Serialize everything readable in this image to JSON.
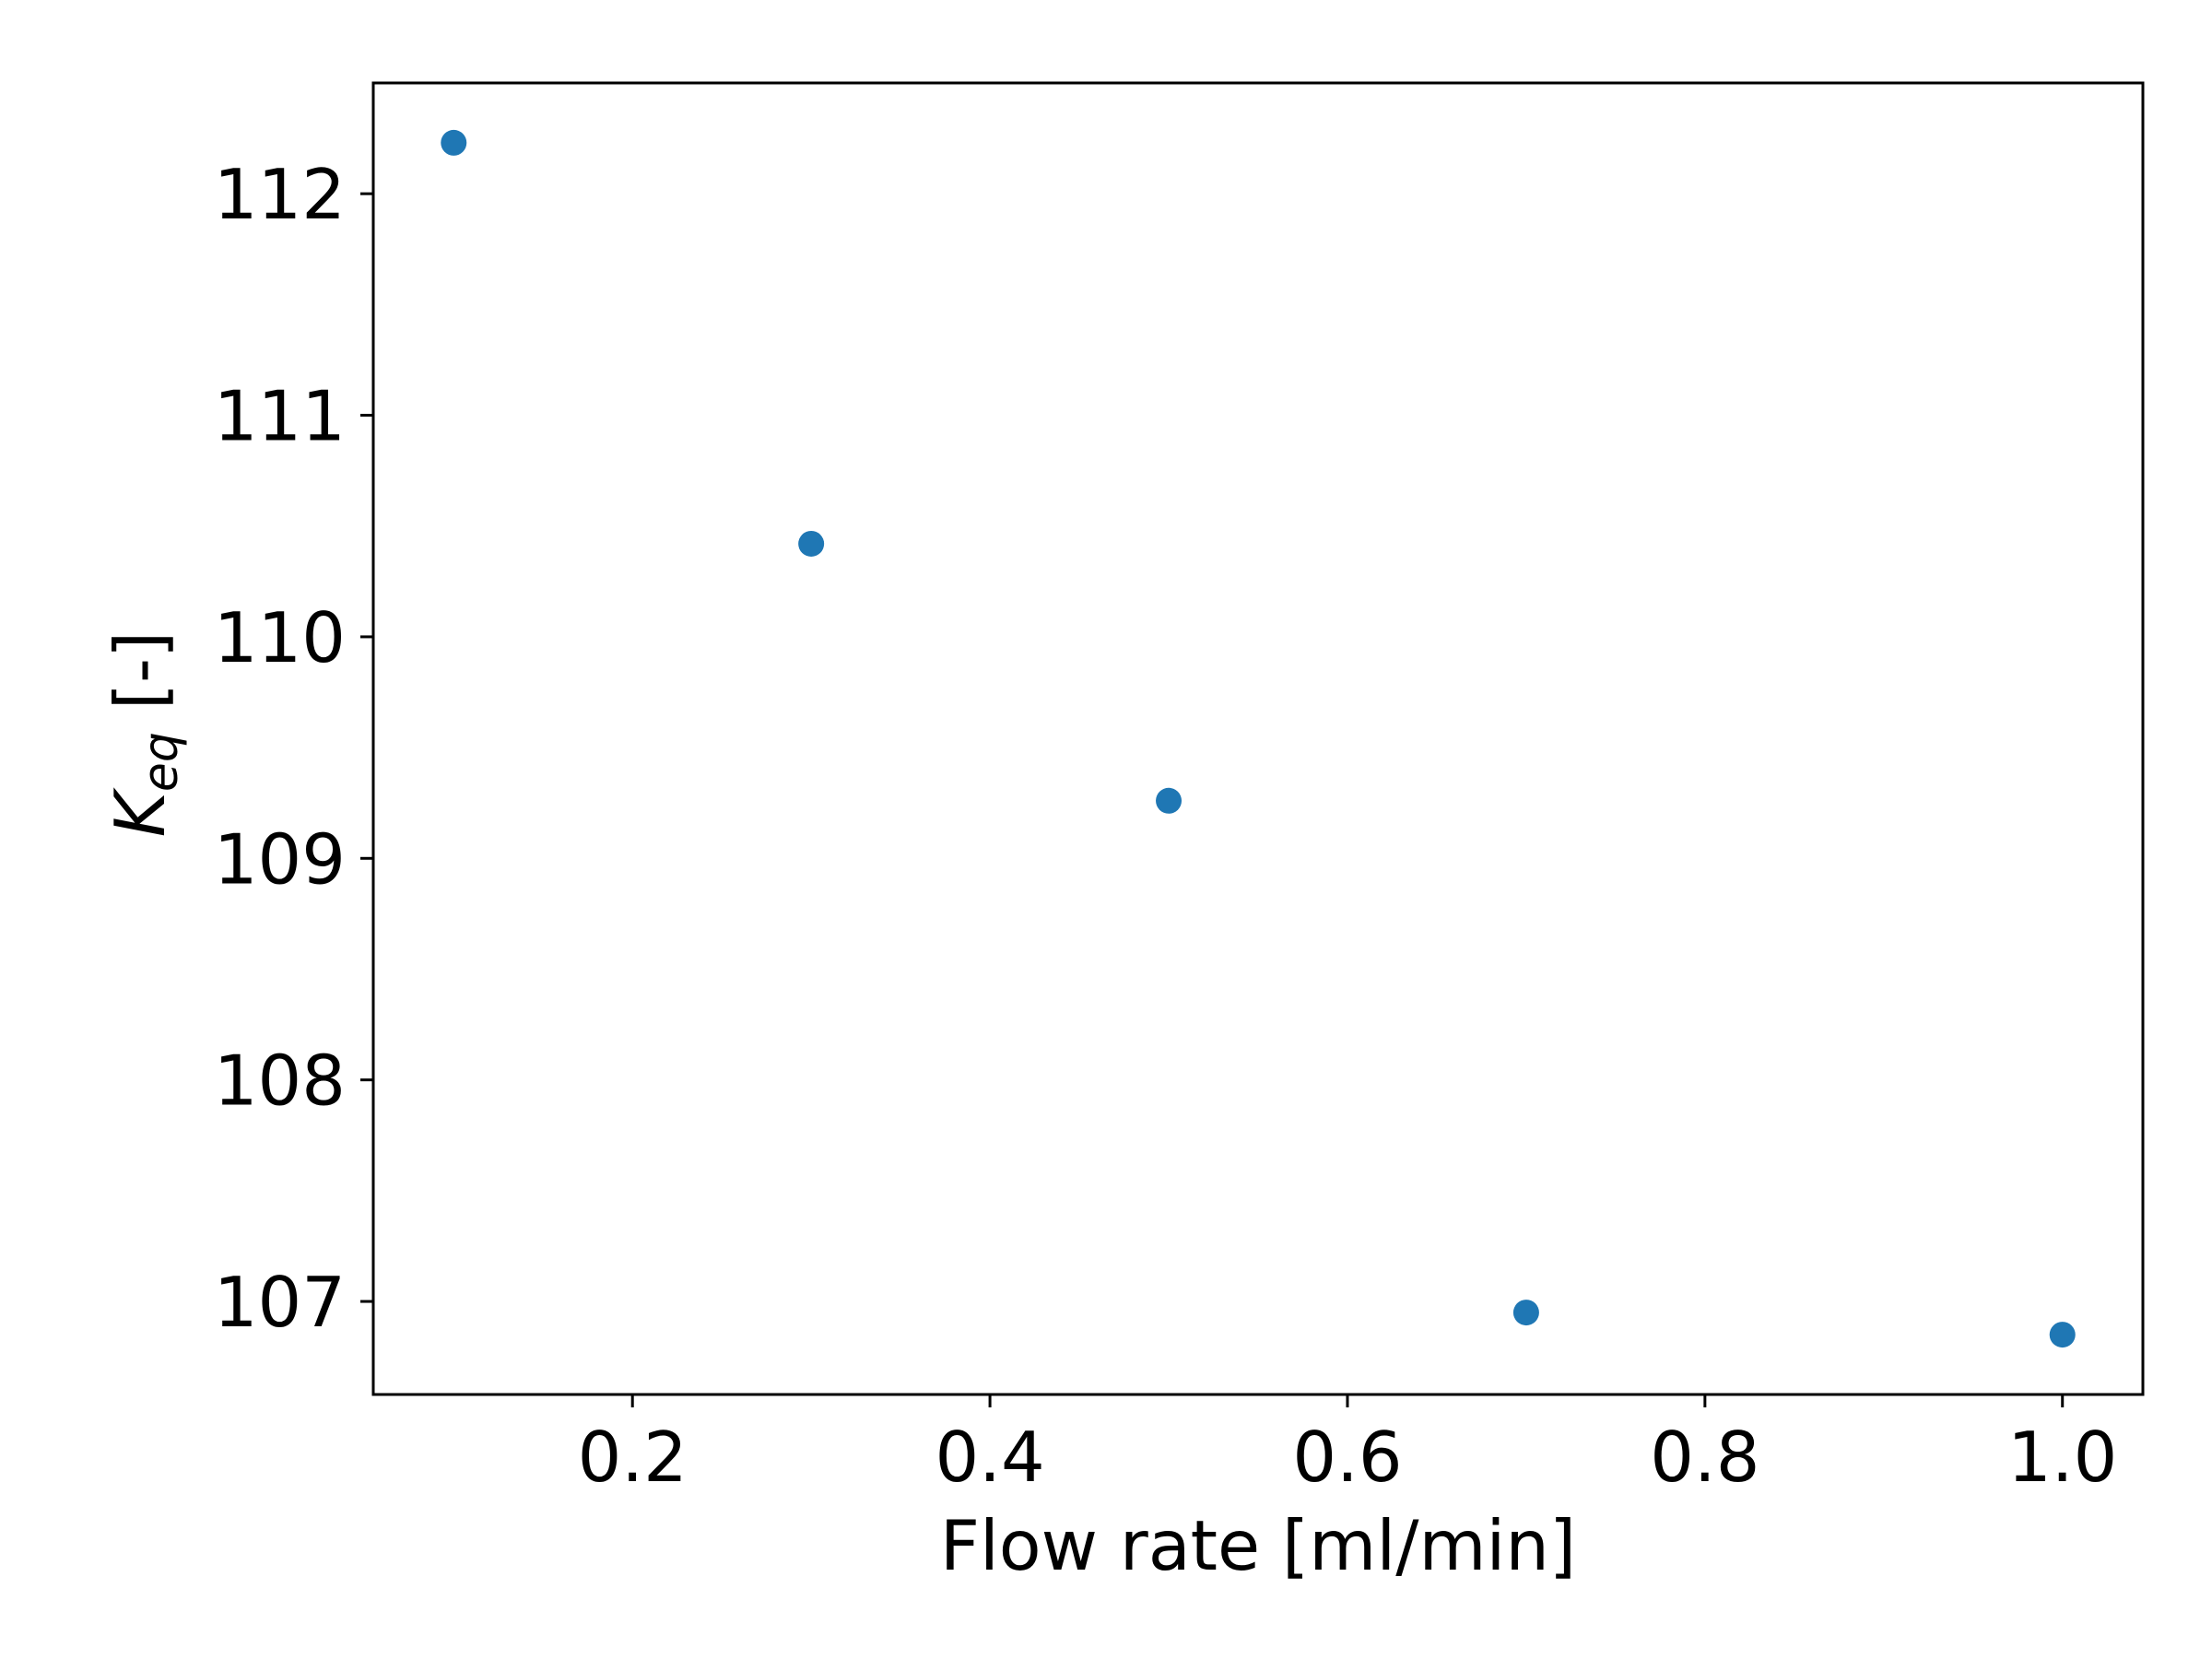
{
  "chart_data": {
    "type": "scatter",
    "title": "",
    "xlabel": "Flow rate [ml/min]",
    "ylabel": {
      "main": "K",
      "subscript": "eq",
      "suffix": " [-]"
    },
    "xlim": [
      0.055,
      1.045
    ],
    "ylim": [
      106.58,
      112.5
    ],
    "x_ticks": [
      0.2,
      0.4,
      0.6,
      0.8,
      1.0
    ],
    "x_tick_labels": [
      "0.2",
      "0.4",
      "0.6",
      "0.8",
      "1.0"
    ],
    "y_ticks": [
      107,
      108,
      109,
      110,
      111,
      112
    ],
    "y_tick_labels": [
      "107",
      "108",
      "109",
      "110",
      "111",
      "112"
    ],
    "grid": false,
    "legend": "none",
    "marker_color": "#1f77b4",
    "series": [
      {
        "x": [
          0.1,
          0.3,
          0.5,
          0.7,
          1.0
        ],
        "y": [
          112.23,
          110.42,
          109.26,
          106.95,
          106.85
        ]
      }
    ]
  }
}
